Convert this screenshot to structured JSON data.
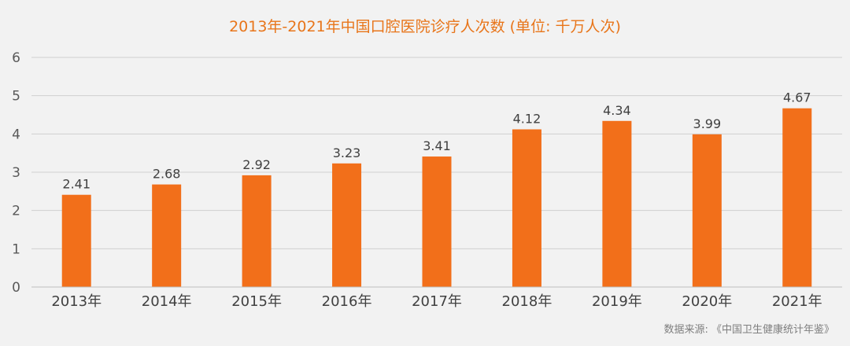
{
  "chart_data": {
    "type": "bar",
    "title": "2013年-2021年中国口腔医院诊疗人次数 (单位: 千万人次)",
    "categories": [
      "2013年",
      "2014年",
      "2015年",
      "2016年",
      "2017年",
      "2018年",
      "2019年",
      "2020年",
      "2021年"
    ],
    "values": [
      2.41,
      2.68,
      2.92,
      3.23,
      3.41,
      4.12,
      4.34,
      3.99,
      4.67
    ],
    "value_labels": [
      "2.41",
      "2.68",
      "2.92",
      "3.23",
      "3.41",
      "4.12",
      "4.34",
      "3.99",
      "4.67"
    ],
    "yticks": [
      "0",
      "1",
      "2",
      "3",
      "4",
      "5",
      "6"
    ],
    "ylim": [
      0,
      6
    ],
    "grid": true,
    "legend": "none",
    "bar_color": "#f26f1a",
    "title_color": "#e8751a"
  },
  "source_note": "数据来源: 《中国卫生健康统计年鉴》"
}
